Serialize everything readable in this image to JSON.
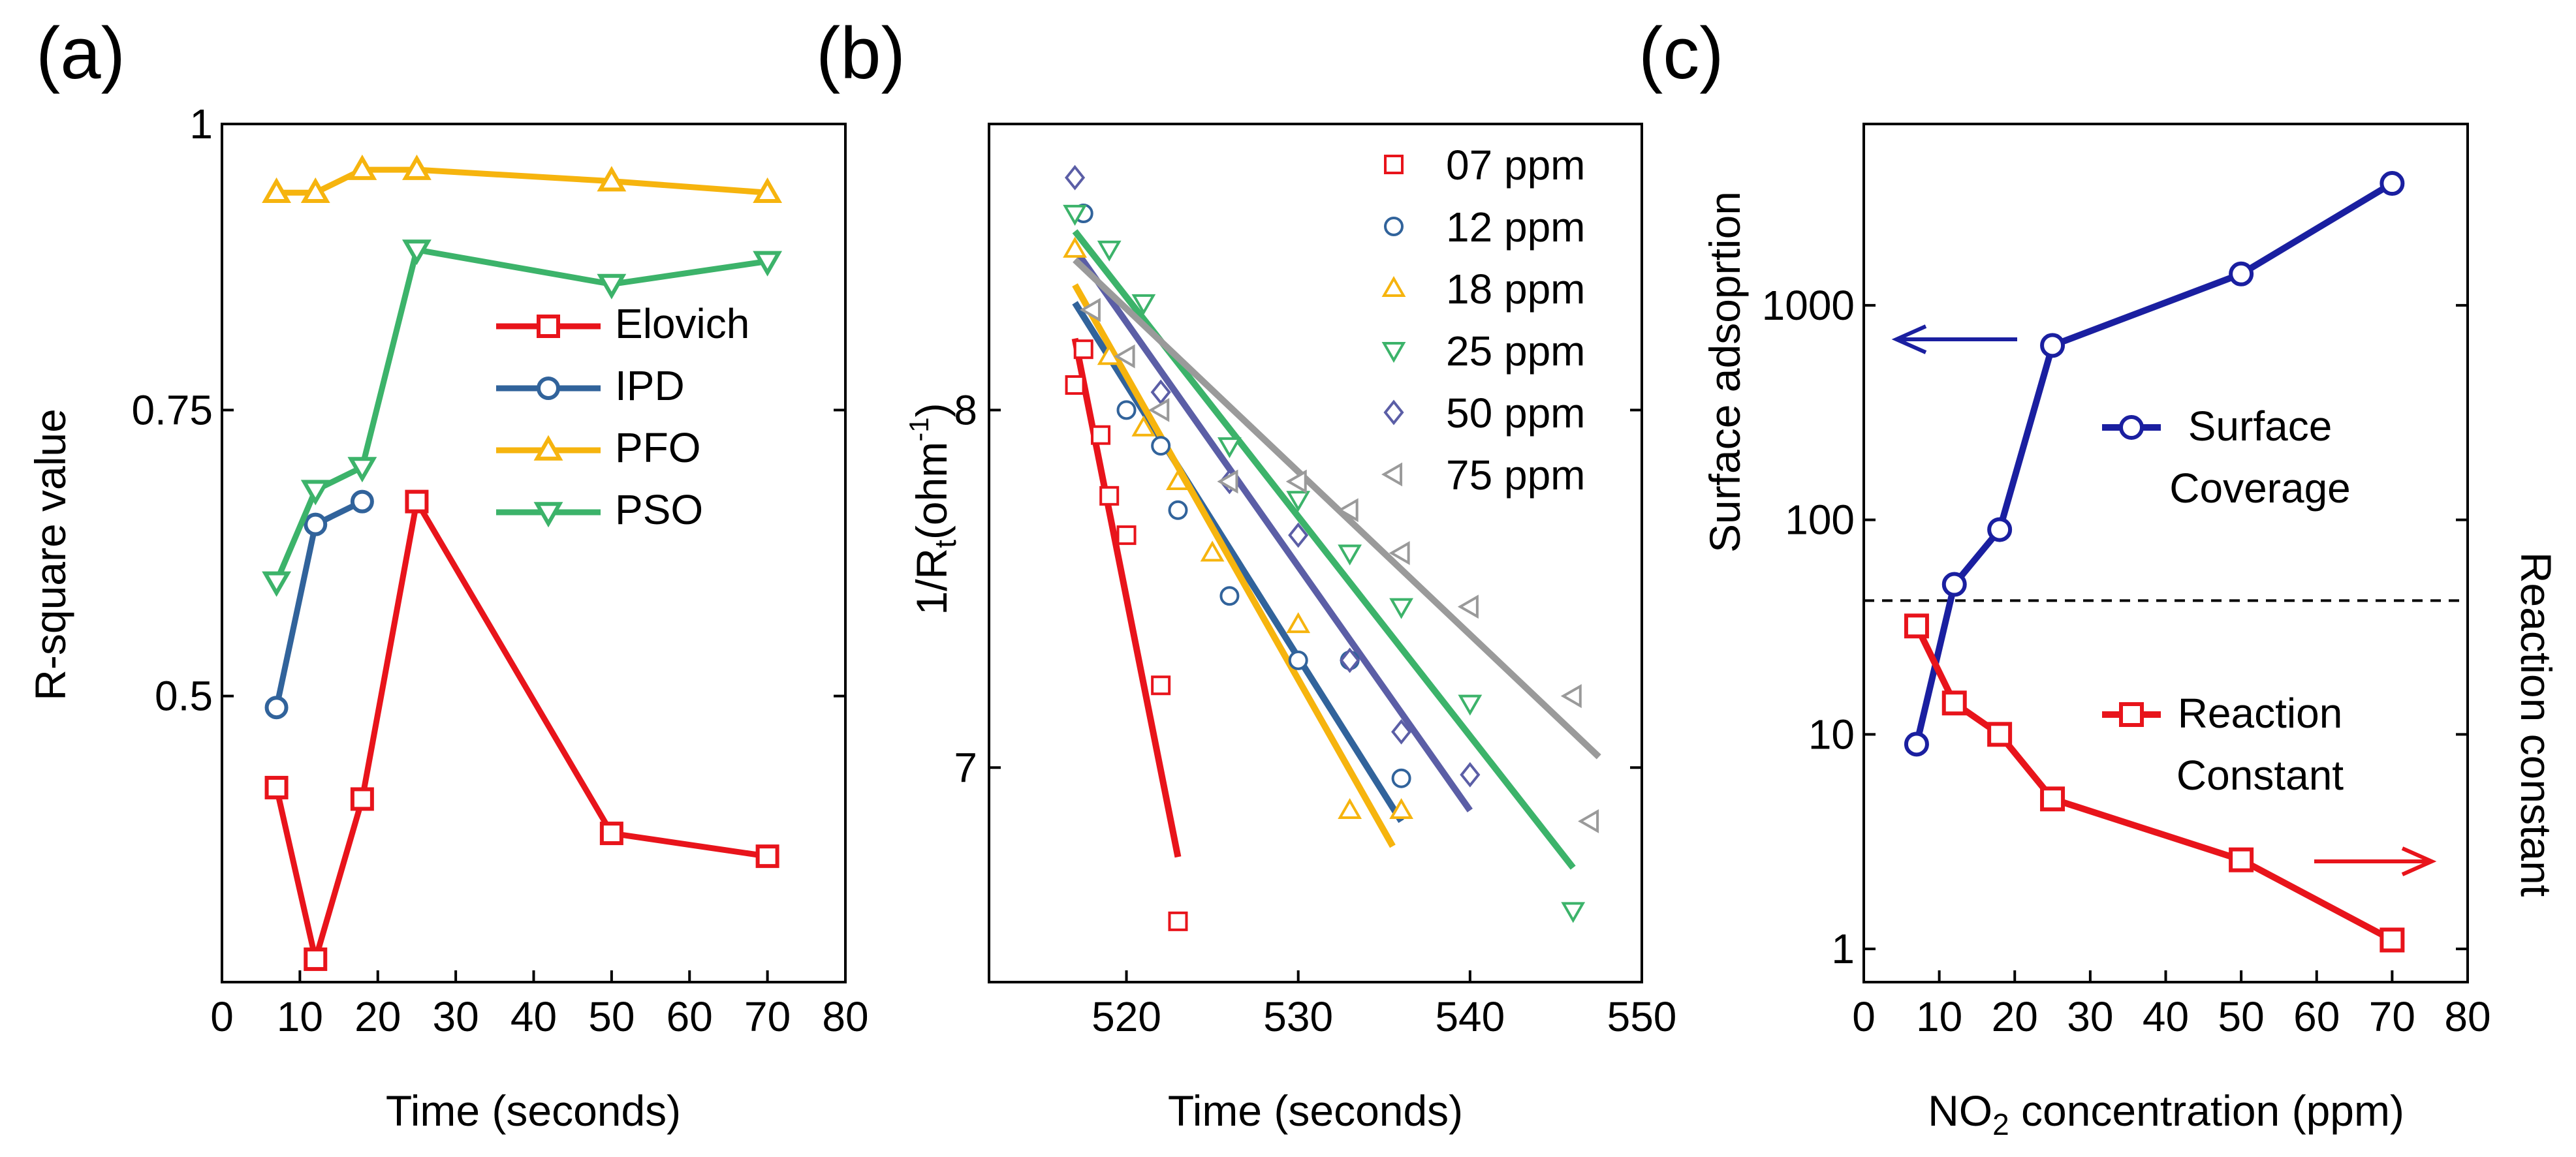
{
  "colors": {
    "red": "#e8141b",
    "blue": "#31639b",
    "yellow": "#f6b40e",
    "green": "#3cb36a",
    "purple": "#5b5ea6",
    "gray": "#9a9a9a",
    "navy": "#1a1fa0"
  },
  "chart_data": [
    {
      "panel": "(a)",
      "type": "line",
      "xlabel": "Time (seconds)",
      "ylabel": "R-square value",
      "xlim": [
        0,
        80
      ],
      "ylim": [
        0.25,
        1.0
      ],
      "xticks": [
        "0",
        "10",
        "20",
        "30",
        "40",
        "50",
        "60",
        "70",
        "80"
      ],
      "yticks": [
        "0.5",
        "0.75",
        "1"
      ],
      "legend_position": "center-right",
      "series": [
        {
          "name": "Elovich",
          "marker": "square",
          "x": [
            7,
            12,
            18,
            25,
            50,
            70
          ],
          "y": [
            0.42,
            0.27,
            0.41,
            0.67,
            0.38,
            0.36
          ]
        },
        {
          "name": "IPD",
          "marker": "circle",
          "x": [
            7,
            12,
            18
          ],
          "y": [
            0.49,
            0.65,
            0.67
          ]
        },
        {
          "name": "PFO",
          "marker": "triangle-up",
          "x": [
            7,
            12,
            18,
            25,
            50,
            70
          ],
          "y": [
            0.94,
            0.94,
            0.96,
            0.96,
            0.95,
            0.94
          ]
        },
        {
          "name": "PSO",
          "marker": "triangle-down",
          "x": [
            7,
            12,
            18,
            25,
            50,
            70
          ],
          "y": [
            0.6,
            0.68,
            0.7,
            0.89,
            0.86,
            0.88
          ]
        }
      ]
    },
    {
      "panel": "(b)",
      "type": "scatter",
      "xlabel": "Time (seconds)",
      "ylabel": "1/R",
      "ylabel_sub": "t",
      "ylabel_rest": "(ohm",
      "ylabel_sup": "-1",
      "ylabel_end": ")",
      "xlim": [
        512,
        550
      ],
      "ylim": [
        6.4,
        8.8
      ],
      "xticks": [
        "520",
        "530",
        "540",
        "550"
      ],
      "yticks": [
        "7",
        "8"
      ],
      "legend_position": "top-right",
      "series": [
        {
          "name": "07 ppm",
          "marker": "square",
          "x": [
            517,
            517.5,
            518.5,
            519,
            520,
            522,
            523
          ],
          "y": [
            8.07,
            8.17,
            7.93,
            7.76,
            7.65,
            7.23,
            6.57
          ],
          "fit": [
            [
              517,
              8.2
            ],
            [
              523,
              6.75
            ]
          ]
        },
        {
          "name": "12 ppm",
          "marker": "circle",
          "x": [
            517.5,
            520,
            522,
            523,
            526,
            530,
            533,
            536
          ],
          "y": [
            8.55,
            8.0,
            7.9,
            7.72,
            7.48,
            7.3,
            7.3,
            6.97
          ],
          "fit": [
            [
              517,
              8.3
            ],
            [
              536,
              6.85
            ]
          ]
        },
        {
          "name": "18 ppm",
          "marker": "triangle-up",
          "x": [
            517,
            519,
            521,
            523,
            525,
            530,
            533,
            536
          ],
          "y": [
            8.45,
            8.15,
            7.95,
            7.8,
            7.6,
            7.4,
            6.88,
            6.88
          ],
          "fit": [
            [
              517,
              8.35
            ],
            [
              535.5,
              6.78
            ]
          ]
        },
        {
          "name": "25 ppm",
          "marker": "triangle-down",
          "x": [
            517,
            519,
            521,
            526,
            530,
            533,
            536,
            540,
            546
          ],
          "y": [
            8.55,
            8.45,
            8.3,
            7.9,
            7.75,
            7.6,
            7.45,
            7.18,
            6.6
          ],
          "fit": [
            [
              517,
              8.5
            ],
            [
              546,
              6.72
            ]
          ]
        },
        {
          "name": "50 ppm",
          "marker": "diamond",
          "x": [
            517,
            522,
            526,
            530,
            533,
            536,
            540
          ],
          "y": [
            8.65,
            8.05,
            7.8,
            7.65,
            7.3,
            7.1,
            6.98
          ],
          "fit": [
            [
              517,
              8.45
            ],
            [
              540,
              6.88
            ]
          ]
        },
        {
          "name": "75 ppm",
          "marker": "triangle-left",
          "x": [
            518,
            520,
            522,
            526,
            530,
            533,
            536,
            540,
            546,
            547
          ],
          "y": [
            8.28,
            8.15,
            8.0,
            7.8,
            7.8,
            7.72,
            7.6,
            7.45,
            7.2,
            6.85
          ],
          "fit": [
            [
              517,
              8.42
            ],
            [
              547.5,
              7.03
            ]
          ]
        }
      ]
    },
    {
      "panel": "(c)",
      "type": "line",
      "xlabel": "NO",
      "xlabel_sub": "2",
      "xlabel_rest": " concentration (ppm)",
      "ylabel": "Surface adsoprtion",
      "ylabel_right": "Reaction constant",
      "xlim": [
        0,
        80
      ],
      "ylim": [
        0.7,
        7000
      ],
      "yscale": "log",
      "xticks": [
        "0",
        "10",
        "20",
        "30",
        "40",
        "50",
        "60",
        "70",
        "80"
      ],
      "yticks": [
        "1",
        "10",
        "100",
        "1000"
      ],
      "series": [
        {
          "name": "Surface Coverage",
          "name_line1": "Surface",
          "name_line2": "Coverage",
          "marker": "circle",
          "x": [
            7,
            12,
            18,
            25,
            50,
            70
          ],
          "y": [
            9,
            50,
            90,
            650,
            1400,
            3700
          ]
        },
        {
          "name": "Reaction Constant",
          "name_line1": "Reaction",
          "name_line2": "Constant",
          "marker": "square",
          "x": [
            7,
            12,
            18,
            25,
            50,
            70
          ],
          "y": [
            32,
            14,
            10,
            5,
            2.6,
            1.1
          ]
        }
      ],
      "dashed_line_y": 42
    }
  ]
}
